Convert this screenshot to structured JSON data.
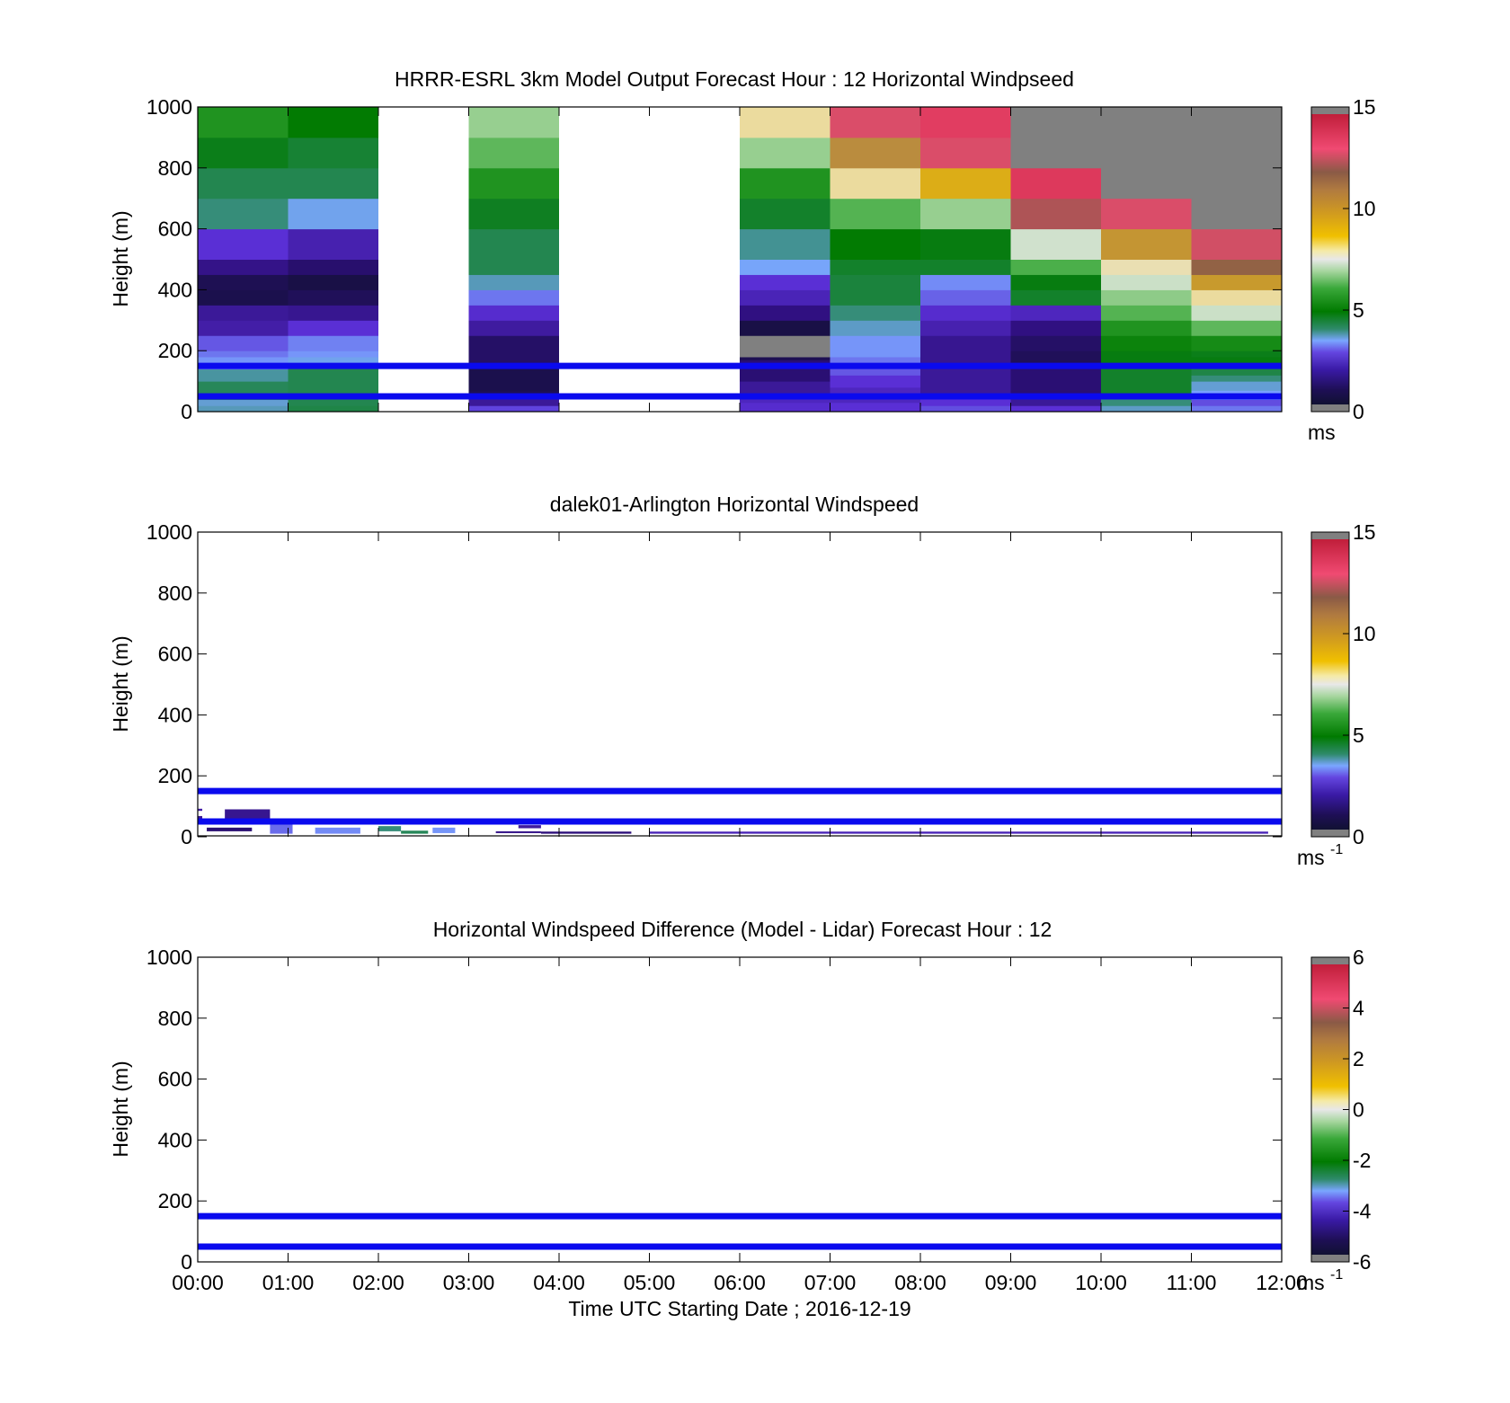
{
  "chart_data": [
    {
      "type": "heatmap",
      "title": "HRRR-ESRL 3km Model Output   Forecast Hour : 12 Horizontal Windpseed",
      "ylabel": "Height (m)",
      "xlabel": "",
      "xlim": [
        0,
        12
      ],
      "ylim": [
        0,
        1000
      ],
      "yticks": [
        0,
        200,
        400,
        600,
        800,
        1000
      ],
      "ytick_labels": [
        "0",
        "200",
        "400",
        "600",
        "800",
        "1000"
      ],
      "colorbar": {
        "range": [
          0,
          15
        ],
        "ticks": [
          0,
          5,
          10,
          15
        ],
        "tick_labels": [
          "0",
          "5",
          "10",
          "15"
        ],
        "units": "ms",
        "units_sup": ""
      },
      "reference_lines_m": [
        50,
        150
      ],
      "columns": [
        {
          "x0": 0,
          "x1": 1,
          "segments": [
            [
              0,
              20,
              4.0
            ],
            [
              20,
              40,
              3.8
            ],
            [
              40,
              100,
              4.8
            ],
            [
              100,
              140,
              4.2
            ],
            [
              140,
              160,
              3.2
            ],
            [
              160,
              180,
              3.3
            ],
            [
              180,
              200,
              3.0
            ],
            [
              200,
              250,
              2.7
            ],
            [
              250,
              300,
              1.7
            ],
            [
              300,
              350,
              1.5
            ],
            [
              350,
              400,
              0.4
            ],
            [
              400,
              450,
              0.5
            ],
            [
              450,
              500,
              1.3
            ],
            [
              500,
              600,
              2.3
            ],
            [
              600,
              700,
              4.5
            ],
            [
              700,
              800,
              4.9
            ],
            [
              800,
              900,
              5.5
            ],
            [
              900,
              1000,
              6.4
            ]
          ]
        },
        {
          "x0": 1,
          "x1": 2,
          "segments": [
            [
              0,
              20,
              5.0
            ],
            [
              20,
              150,
              4.9
            ],
            [
              150,
              180,
              3.6
            ],
            [
              180,
              200,
              3.3
            ],
            [
              200,
              250,
              3.1
            ],
            [
              250,
              300,
              2.3
            ],
            [
              300,
              350,
              1.4
            ],
            [
              350,
              400,
              0.6
            ],
            [
              400,
              450,
              0.3
            ],
            [
              450,
              500,
              0.9
            ],
            [
              500,
              600,
              1.8
            ],
            [
              600,
              700,
              3.6
            ],
            [
              700,
              800,
              4.9
            ],
            [
              800,
              900,
              5.2
            ],
            [
              900,
              1000,
              5.8
            ]
          ]
        },
        {
          "x0": 3,
          "x1": 4,
          "segments": [
            [
              0,
              20,
              2.5
            ],
            [
              20,
              50,
              1.5
            ],
            [
              50,
              70,
              0.5
            ],
            [
              70,
              150,
              0.4
            ],
            [
              150,
              250,
              0.8
            ],
            [
              250,
              300,
              1.6
            ],
            [
              300,
              350,
              2.2
            ],
            [
              350,
              400,
              3.0
            ],
            [
              400,
              450,
              4.0
            ],
            [
              450,
              600,
              4.9
            ],
            [
              600,
              700,
              5.4
            ],
            [
              700,
              800,
              6.4
            ],
            [
              800,
              900,
              7.3
            ],
            [
              900,
              1000,
              7.9
            ]
          ]
        },
        {
          "x0": 6,
          "x1": 7,
          "segments": [
            [
              0,
              30,
              2.2
            ],
            [
              30,
              60,
              2.0
            ],
            [
              60,
              100,
              1.5
            ],
            [
              100,
              170,
              1.0
            ],
            [
              170,
              180,
              0.5
            ],
            [
              180,
              250,
              15.5
            ],
            [
              250,
              300,
              0.3
            ],
            [
              300,
              350,
              1.2
            ],
            [
              350,
              400,
              1.9
            ],
            [
              400,
              450,
              2.3
            ],
            [
              450,
              500,
              3.5
            ],
            [
              500,
              600,
              4.3
            ],
            [
              600,
              700,
              5.3
            ],
            [
              700,
              800,
              6.4
            ],
            [
              800,
              900,
              7.9
            ],
            [
              900,
              1000,
              9.6
            ]
          ]
        },
        {
          "x0": 7,
          "x1": 8,
          "segments": [
            [
              0,
              30,
              2.3
            ],
            [
              30,
              80,
              2.0
            ],
            [
              80,
              120,
              2.3
            ],
            [
              120,
              150,
              2.7
            ],
            [
              150,
              180,
              3.0
            ],
            [
              180,
              250,
              3.3
            ],
            [
              250,
              300,
              3.9
            ],
            [
              300,
              350,
              4.5
            ],
            [
              350,
              450,
              5.1
            ],
            [
              450,
              500,
              5.3
            ],
            [
              500,
              600,
              5.8
            ],
            [
              600,
              700,
              7.2
            ],
            [
              700,
              800,
              9.6
            ],
            [
              800,
              900,
              11.5
            ],
            [
              900,
              1000,
              13.6
            ]
          ]
        },
        {
          "x0": 8,
          "x1": 9,
          "segments": [
            [
              0,
              20,
              2.6
            ],
            [
              20,
              50,
              2.3
            ],
            [
              50,
              150,
              1.5
            ],
            [
              150,
              250,
              1.4
            ],
            [
              250,
              300,
              1.8
            ],
            [
              300,
              350,
              2.2
            ],
            [
              350,
              400,
              2.8
            ],
            [
              400,
              450,
              3.2
            ],
            [
              450,
              500,
              5.3
            ],
            [
              500,
              600,
              5.6
            ],
            [
              600,
              700,
              7.9
            ],
            [
              700,
              800,
              10.8
            ],
            [
              800,
              900,
              13.6
            ],
            [
              900,
              1000,
              14.2
            ]
          ]
        },
        {
          "x0": 9,
          "x1": 10,
          "segments": [
            [
              0,
              20,
              2.3
            ],
            [
              20,
              50,
              1.5
            ],
            [
              50,
              150,
              1.0
            ],
            [
              150,
              200,
              0.6
            ],
            [
              200,
              250,
              0.8
            ],
            [
              250,
              300,
              1.2
            ],
            [
              300,
              350,
              2.0
            ],
            [
              350,
              400,
              5.3
            ],
            [
              400,
              450,
              5.6
            ],
            [
              450,
              500,
              7.1
            ],
            [
              500,
              600,
              8.8
            ],
            [
              600,
              700,
              13.1
            ],
            [
              700,
              800,
              14.3
            ],
            [
              800,
              1000,
              15.5
            ]
          ]
        },
        {
          "x0": 10,
          "x1": 11,
          "segments": [
            [
              0,
              20,
              3.9
            ],
            [
              20,
              50,
              4.5
            ],
            [
              50,
              150,
              5.3
            ],
            [
              150,
              200,
              5.6
            ],
            [
              200,
              250,
              6.0
            ],
            [
              250,
              300,
              6.4
            ],
            [
              300,
              350,
              7.2
            ],
            [
              350,
              400,
              7.8
            ],
            [
              400,
              450,
              8.7
            ],
            [
              450,
              500,
              9.5
            ],
            [
              500,
              600,
              11.3
            ],
            [
              600,
              700,
              13.6
            ],
            [
              700,
              1000,
              15.5
            ]
          ]
        },
        {
          "x0": 11,
          "x1": 12,
          "segments": [
            [
              0,
              20,
              3.0
            ],
            [
              20,
              40,
              2.6
            ],
            [
              40,
              70,
              3.4
            ],
            [
              70,
              100,
              3.8
            ],
            [
              100,
              120,
              4.5
            ],
            [
              120,
              150,
              5.0
            ],
            [
              150,
              180,
              5.6
            ],
            [
              180,
              200,
              5.5
            ],
            [
              200,
              250,
              6.2
            ],
            [
              250,
              300,
              7.3
            ],
            [
              300,
              350,
              8.7
            ],
            [
              350,
              400,
              9.6
            ],
            [
              400,
              450,
              11.2
            ],
            [
              450,
              500,
              12.5
            ],
            [
              500,
              600,
              13.5
            ],
            [
              600,
              1000,
              15.5
            ]
          ]
        }
      ]
    },
    {
      "type": "heatmap",
      "title": "dalek01-Arlington  Horizontal Windspeed",
      "ylabel": "Height (m)",
      "xlabel": "",
      "xlim": [
        0,
        12
      ],
      "ylim": [
        0,
        1000
      ],
      "yticks": [
        0,
        200,
        400,
        600,
        800,
        1000
      ],
      "ytick_labels": [
        "0",
        "200",
        "400",
        "600",
        "800",
        "1000"
      ],
      "colorbar": {
        "range": [
          0,
          15
        ],
        "ticks": [
          0,
          5,
          10,
          15
        ],
        "tick_labels": [
          "0",
          "5",
          "10",
          "15"
        ],
        "units": "ms",
        "units_sup": "-1"
      },
      "reference_lines_m": [
        50,
        150
      ],
      "patches": [
        [
          0.0,
          0.05,
          85,
          92,
          1.7
        ],
        [
          0.0,
          0.05,
          60,
          68,
          1.5
        ],
        [
          0.3,
          0.8,
          60,
          90,
          1.4
        ],
        [
          0.3,
          0.8,
          40,
          60,
          1.2
        ],
        [
          0.1,
          0.6,
          18,
          30,
          1.0
        ],
        [
          0.8,
          1.05,
          10,
          40,
          2.9
        ],
        [
          1.3,
          1.8,
          10,
          30,
          3.2
        ],
        [
          2.0,
          2.25,
          18,
          35,
          4.5
        ],
        [
          2.25,
          2.55,
          10,
          20,
          4.8
        ],
        [
          2.6,
          2.85,
          12,
          30,
          3.3
        ],
        [
          3.3,
          3.8,
          12,
          18,
          1.3
        ],
        [
          3.55,
          3.8,
          28,
          38,
          1.6
        ],
        [
          3.8,
          4.8,
          10,
          17,
          1.1
        ],
        [
          5.0,
          11.85,
          10,
          17,
          1.9
        ]
      ]
    },
    {
      "type": "heatmap",
      "title": "Horizontal Windspeed Difference (Model - Lidar) Forecast Hour : 12",
      "ylabel": "Height (m)",
      "xlabel": "Time UTC  Starting Date ; 2016-12-19",
      "xlim": [
        0,
        12
      ],
      "ylim": [
        0,
        1000
      ],
      "yticks": [
        0,
        200,
        400,
        600,
        800,
        1000
      ],
      "ytick_labels": [
        "0",
        "200",
        "400",
        "600",
        "800",
        "1000"
      ],
      "xticks": [
        0,
        1,
        2,
        3,
        4,
        5,
        6,
        7,
        8,
        9,
        10,
        11,
        12
      ],
      "xtick_labels": [
        "00:00",
        "01:00",
        "02:00",
        "03:00",
        "04:00",
        "05:00",
        "06:00",
        "07:00",
        "08:00",
        "09:00",
        "10:00",
        "11:00",
        "12:00"
      ],
      "colorbar": {
        "range": [
          -6,
          6
        ],
        "ticks": [
          -6,
          -4,
          -2,
          0,
          2,
          4,
          6
        ],
        "tick_labels": [
          "-6",
          "-4",
          "-2",
          "0",
          "2",
          "4",
          "6"
        ],
        "units": "ms",
        "units_sup": "-1"
      },
      "reference_lines_m": [
        50,
        150
      ],
      "patches": []
    }
  ],
  "colors": {
    "reference_line": "#0a0aee",
    "missing": "#808080",
    "colormap": [
      "#808080",
      "#111133",
      "#2e0f7d",
      "#5a2fd6",
      "#7aa6ff",
      "#2e8a6a",
      "#007a00",
      "#3aa83a",
      "#a8d6a0",
      "#e8e8e8",
      "#f0c000",
      "#b88a40",
      "#8a5a46",
      "#f04a72",
      "#c01e3a",
      "#808080"
    ]
  }
}
